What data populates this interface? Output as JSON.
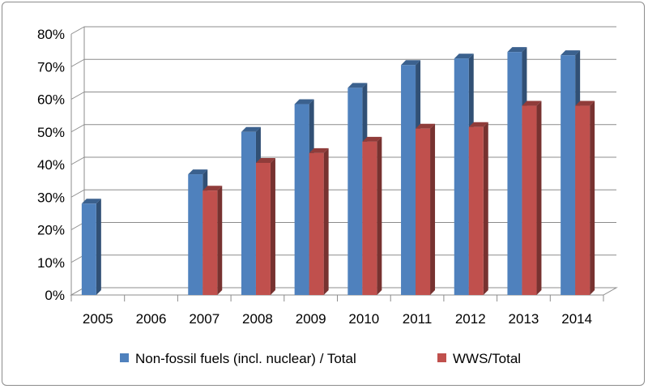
{
  "chart_data": {
    "type": "bar",
    "title": "",
    "xlabel": "",
    "ylabel": "",
    "categories": [
      "2005",
      "2006",
      "2007",
      "2008",
      "2009",
      "2010",
      "2011",
      "2012",
      "2013",
      "2014"
    ],
    "series": [
      {
        "name": "Non-fossil fuels (incl. nuclear) / Total",
        "color": "#4f81bd",
        "values": [
          28,
          null,
          37,
          50,
          58.5,
          63.5,
          70.5,
          72.5,
          74.5,
          73.5
        ]
      },
      {
        "name": "WWS/Total",
        "color": "#c0504d",
        "values": [
          null,
          null,
          32,
          40.5,
          43.5,
          47,
          51,
          51.5,
          58,
          58
        ]
      }
    ],
    "yticks": [
      "0%",
      "10%",
      "20%",
      "30%",
      "40%",
      "50%",
      "60%",
      "70%",
      "80%"
    ],
    "ylim": [
      0,
      80
    ],
    "grid": true,
    "style": "3d-clustered-column",
    "legend_position": "bottom"
  }
}
